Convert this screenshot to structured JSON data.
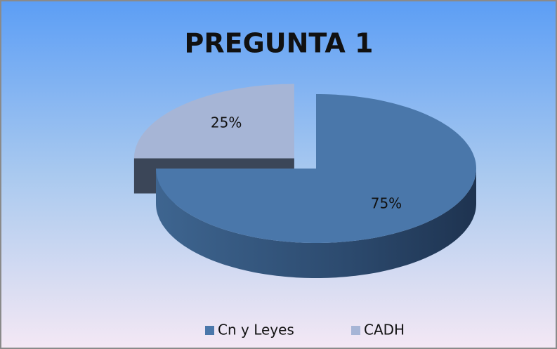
{
  "chart_data": {
    "type": "pie3d",
    "title": "PREGUNTA 1",
    "categories": [
      "Cn y Leyes",
      "CADH"
    ],
    "values": [
      75,
      25
    ],
    "value_labels": [
      "75%",
      "25%"
    ],
    "colors": [
      "#4a77aa",
      "#a6b5d6"
    ],
    "legend": "bottom"
  }
}
